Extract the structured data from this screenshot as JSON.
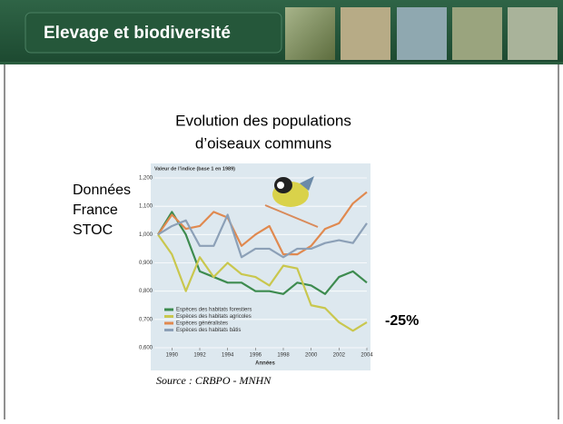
{
  "slide": {
    "title": "Elevage et biodiversité",
    "heading_line1": "Evolution des populations",
    "heading_line2": "d’oiseaux communs",
    "side_note": [
      "Données",
      "France",
      "STOC"
    ],
    "annotation": "-25%",
    "source": "Source : CRBPO - MNHN"
  },
  "chart_data": {
    "type": "line",
    "y_axis_title": "Valeur de l’indice (base 1 en 1989)",
    "x_axis_title": "Années",
    "x": [
      1989,
      1990,
      1991,
      1992,
      1993,
      1994,
      1995,
      1996,
      1997,
      1998,
      1999,
      2000,
      2001,
      2002,
      2003,
      2004
    ],
    "series": [
      {
        "name": "Espèces des habitats forestiers",
        "color": "#3d8b4f",
        "values": [
          1.0,
          1.08,
          1.0,
          0.87,
          0.85,
          0.83,
          0.83,
          0.8,
          0.8,
          0.79,
          0.83,
          0.82,
          0.79,
          0.85,
          0.87,
          0.83
        ]
      },
      {
        "name": "Espèces des habitats agricoles",
        "color": "#c9c74e",
        "values": [
          1.0,
          0.93,
          0.8,
          0.92,
          0.85,
          0.9,
          0.86,
          0.85,
          0.82,
          0.89,
          0.88,
          0.75,
          0.74,
          0.69,
          0.66,
          0.69
        ]
      },
      {
        "name": "Espèces généralistes",
        "color": "#e0894f",
        "values": [
          1.0,
          1.07,
          1.02,
          1.03,
          1.08,
          1.06,
          0.96,
          1.0,
          1.03,
          0.93,
          0.93,
          0.96,
          1.02,
          1.04,
          1.11,
          1.15
        ]
      },
      {
        "name": "Espèces des habitats bâtis",
        "color": "#8ca0b7",
        "values": [
          1.0,
          1.03,
          1.05,
          0.96,
          0.96,
          1.07,
          0.92,
          0.95,
          0.95,
          0.92,
          0.95,
          0.95,
          0.97,
          0.98,
          0.97,
          1.04
        ]
      }
    ],
    "xlim": [
      1989,
      2004
    ],
    "xticks": [
      1990,
      1992,
      1994,
      1996,
      1998,
      2000,
      2002,
      2004
    ],
    "ylim": [
      0.6,
      1.2
    ],
    "yticks": [
      {
        "value": 0.6,
        "label": "0,600"
      },
      {
        "value": 0.7,
        "label": "0,700"
      },
      {
        "value": 0.8,
        "label": "0,800"
      },
      {
        "value": 0.9,
        "label": "0,900"
      },
      {
        "value": 1.0,
        "label": "1,000"
      },
      {
        "value": 1.1,
        "label": "1,100"
      },
      {
        "value": 1.2,
        "label": "1,200"
      }
    ],
    "grid": true
  }
}
